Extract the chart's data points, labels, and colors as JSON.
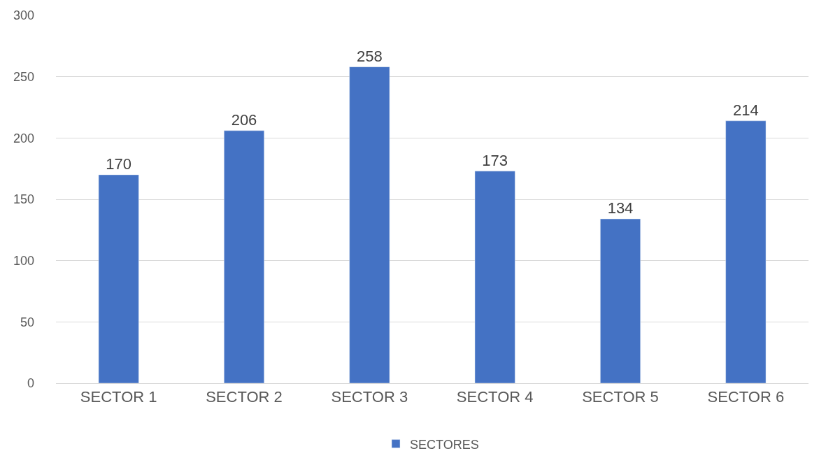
{
  "chart_data": {
    "type": "bar",
    "categories": [
      "SECTOR 1",
      "SECTOR 2",
      "SECTOR 3",
      "SECTOR 4",
      "SECTOR 5",
      "SECTOR 6"
    ],
    "series": [
      {
        "name": "SECTORES",
        "color": "#4472c4",
        "values": [
          170,
          206,
          258,
          173,
          134,
          214
        ]
      }
    ],
    "ylim": [
      0,
      300
    ],
    "yticks": [
      0,
      50,
      100,
      150,
      200,
      250,
      300
    ],
    "grid": "y",
    "legend": "bottom",
    "data_labels": true
  }
}
